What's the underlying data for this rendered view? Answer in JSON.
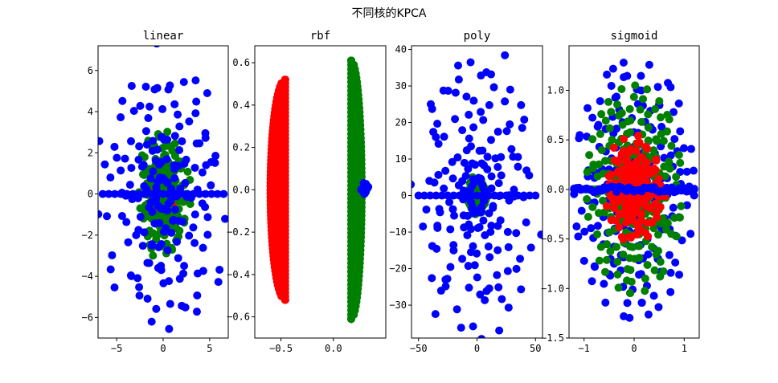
{
  "figure": {
    "suptitle": "不同核的KPCA"
  },
  "chart_data": [
    {
      "type": "scatter",
      "title": "linear",
      "xlim": [
        -7,
        7
      ],
      "ylim": [
        -7,
        7.2
      ],
      "xticks": [
        -5,
        0,
        5
      ],
      "yticks": [
        -6,
        -4,
        -2,
        0,
        2,
        4,
        6
      ],
      "xtick_labels": [
        "−5",
        "0",
        "5"
      ],
      "ytick_labels": [
        "−6",
        "−4",
        "−2",
        "0",
        "2",
        "4",
        "6"
      ],
      "grid": false,
      "series": [
        {
          "color": "#ff0000",
          "shape": "ellipse-cloud",
          "cx": 0,
          "cy": 0,
          "rx": 1.2,
          "ry": 1.5
        },
        {
          "color": "#008000",
          "shape": "ellipse-cloud",
          "cx": 0,
          "cy": 0,
          "rx": 2.6,
          "ry": 3.0
        },
        {
          "color": "#0000ff",
          "shape": "ellipse-cloud",
          "cx": 0,
          "cy": 0,
          "rx": 6.5,
          "ry": 6.5
        }
      ]
    },
    {
      "type": "scatter",
      "title": "rbf",
      "xlim": [
        -0.75,
        0.5
      ],
      "ylim": [
        -0.7,
        0.68
      ],
      "xticks": [
        -0.5,
        0.0
      ],
      "yticks": [
        -0.6,
        -0.4,
        -0.2,
        0.0,
        0.2,
        0.4,
        0.6
      ],
      "xtick_labels": [
        "−0.5",
        "0.0"
      ],
      "ytick_labels": [
        "−0.6",
        "−0.4",
        "−0.2",
        "0.0",
        "0.2",
        "0.4",
        "0.6"
      ],
      "grid": false,
      "series": [
        {
          "color": "#ff0000",
          "shape": "crescent-left",
          "x_start": -0.46,
          "x_end": -0.6,
          "ymax": 0.52
        },
        {
          "color": "#008000",
          "shape": "crescent-right",
          "x_start": 0.17,
          "x_end": 0.27,
          "ymax": 0.61
        },
        {
          "color": "#0000ff",
          "shape": "blob",
          "cx": 0.3,
          "cy": 0.01,
          "rx": 0.04,
          "ry": 0.03
        }
      ]
    },
    {
      "type": "scatter",
      "title": "poly",
      "xlim": [
        -56,
        56
      ],
      "ylim": [
        -39,
        41
      ],
      "xticks": [
        -50,
        0,
        50
      ],
      "yticks": [
        -30,
        -20,
        -10,
        0,
        10,
        20,
        30,
        40
      ],
      "xtick_labels": [
        "−50",
        "0",
        "50"
      ],
      "ytick_labels": [
        "−30",
        "−20",
        "−10",
        "0",
        "10",
        "20",
        "30",
        "40"
      ],
      "grid": false,
      "series": [
        {
          "color": "#ff0000",
          "shape": "ellipse-cloud",
          "cx": 0,
          "cy": 0,
          "rx": 2,
          "ry": 2
        },
        {
          "color": "#008000",
          "shape": "ellipse-cloud",
          "cx": 0,
          "cy": 0,
          "rx": 8,
          "ry": 5
        },
        {
          "color": "#0000ff",
          "shape": "ellipse-cloud",
          "cx": 0,
          "cy": 0,
          "rx": 50,
          "ry": 37
        }
      ]
    },
    {
      "type": "scatter",
      "title": "sigmoid",
      "xlim": [
        -1.3,
        1.3
      ],
      "ylim": [
        -1.5,
        1.45
      ],
      "xticks": [
        -1,
        0,
        1
      ],
      "yticks": [
        -1.5,
        -1.0,
        -0.5,
        0.0,
        0.5,
        1.0
      ],
      "xtick_labels": [
        "−1",
        "0",
        "1"
      ],
      "ytick_labels": [
        "−1.5",
        "−1.0",
        "−0.5",
        "0.0",
        "0.5",
        "1.0"
      ],
      "grid": false,
      "series": [
        {
          "color": "#0000ff",
          "shape": "ellipse-rings",
          "cx": 0,
          "cy": 0,
          "rx": 1.2,
          "ry": 1.3
        },
        {
          "color": "#008000",
          "shape": "ellipse-rings",
          "cx": 0,
          "cy": 0,
          "rx": 0.95,
          "ry": 1.05
        },
        {
          "color": "#ff0000",
          "shape": "ellipse-cloud",
          "cx": 0,
          "cy": 0,
          "rx": 0.55,
          "ry": 0.5
        },
        {
          "color": "#0000ff",
          "shape": "band",
          "cx": 0,
          "cy": 0,
          "rx": 1.2,
          "ry": 0.06
        }
      ]
    }
  ]
}
